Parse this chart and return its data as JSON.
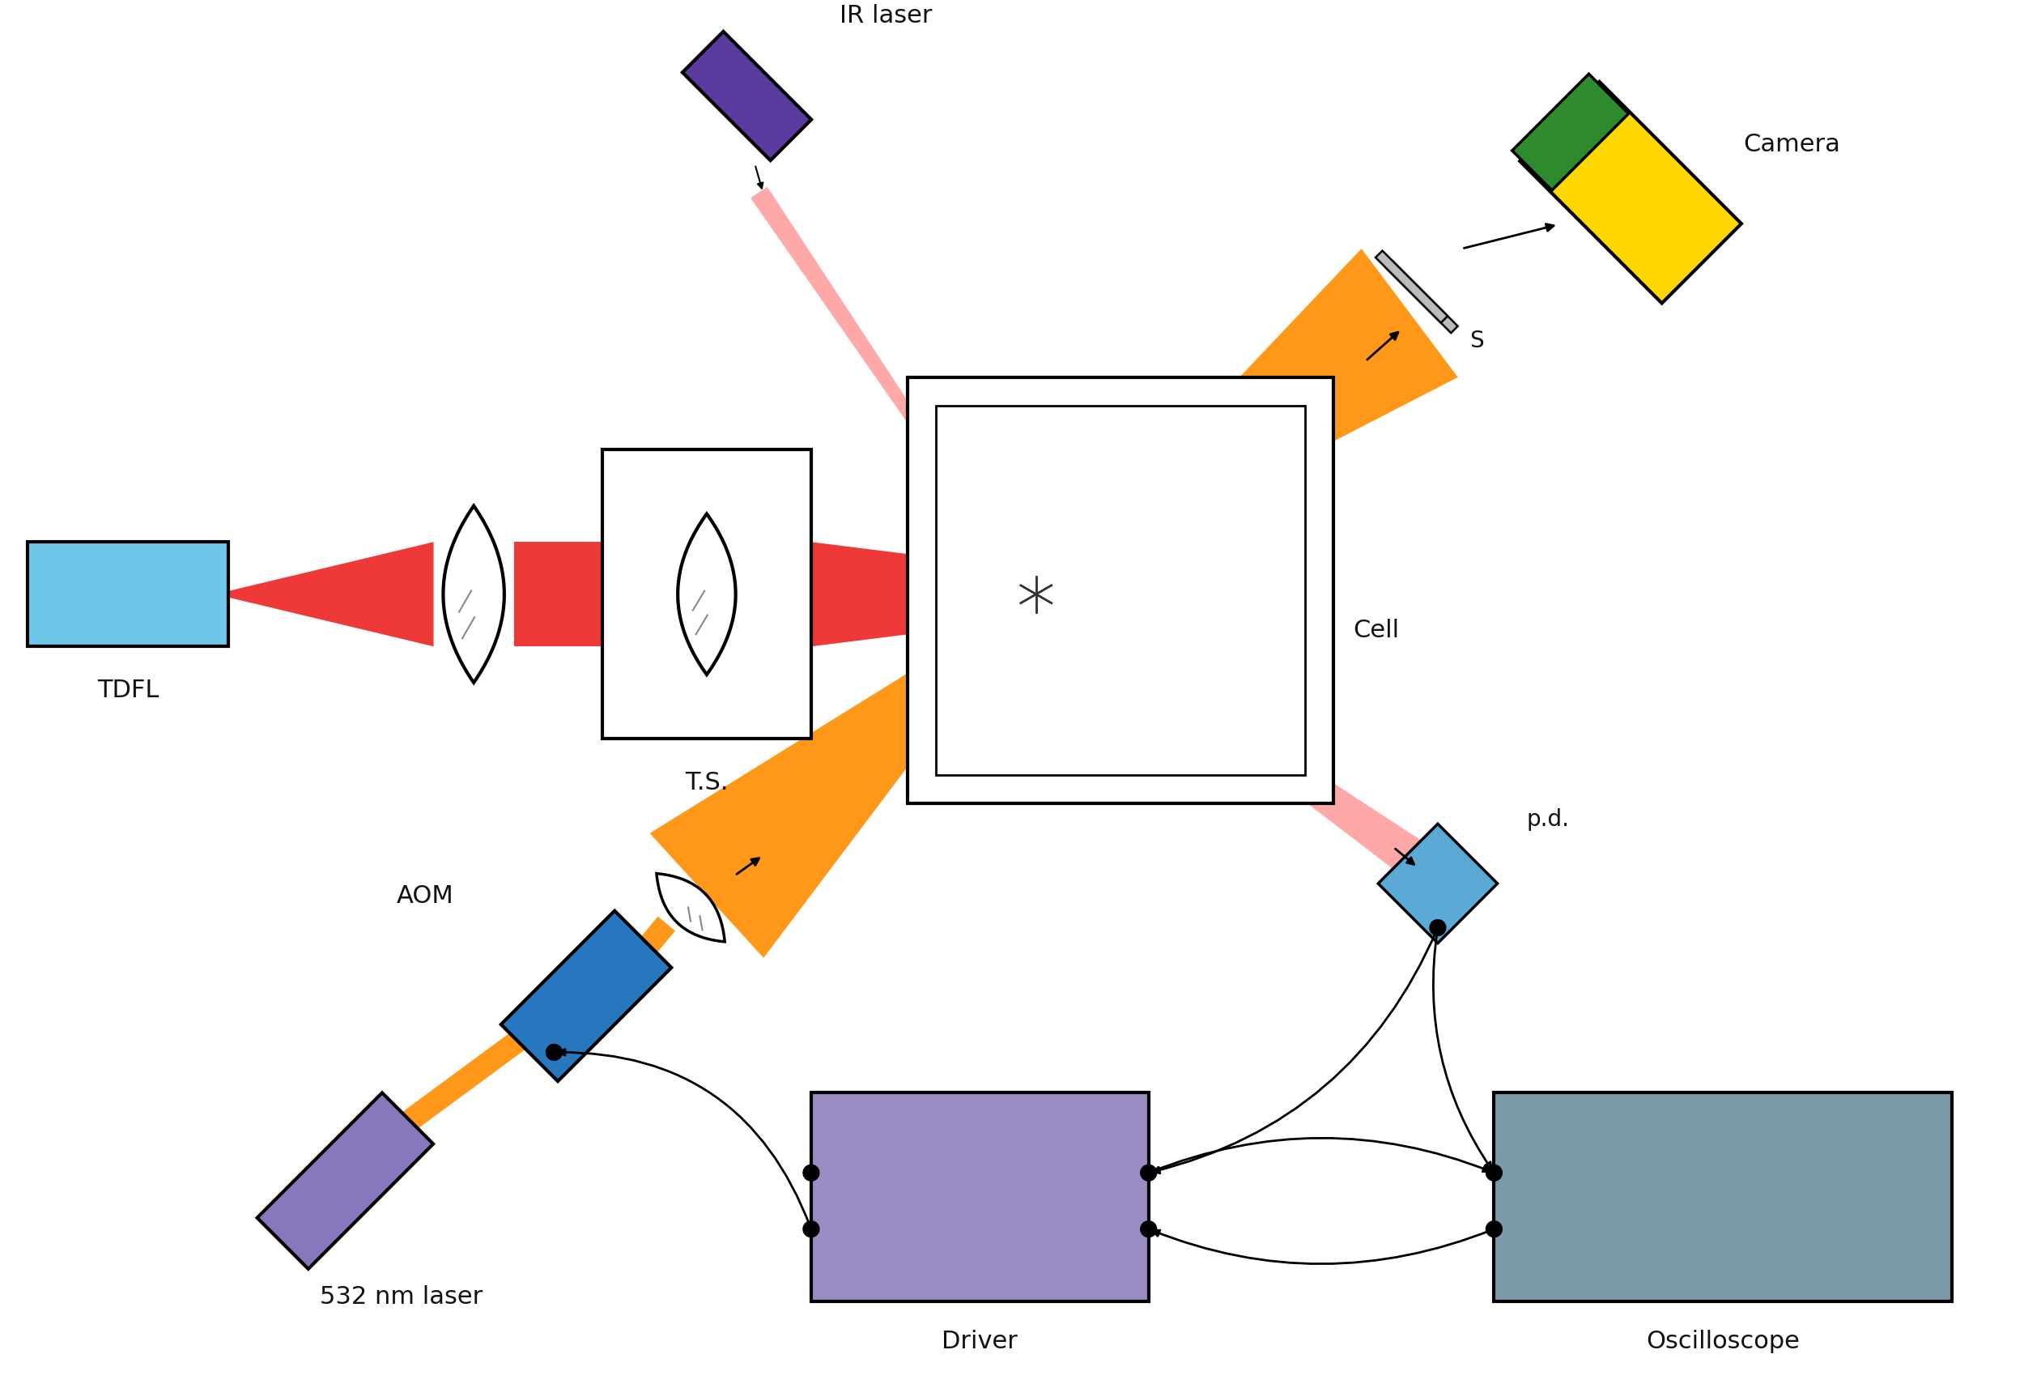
{
  "bg": "#ffffff",
  "fw": 25.0,
  "fh": 17.09,
  "colors": {
    "red": "#EE2222",
    "pink": "#FF9999",
    "orange": "#FF8C00",
    "ir_purple": "#5B3A9E",
    "laser532_purple": "#8878BB",
    "cam_yellow": "#FFD700",
    "cam_green": "#2D8B2D",
    "blue_aom": "#2878C0",
    "blue_pd": "#5AAAD5",
    "lavender": "#9B8DC4",
    "slate": "#7C9AAA",
    "cyan_tdfl": "#6EC6EA",
    "mirror_gray": "#BBBBBB",
    "black": "#111111",
    "white": "#ffffff"
  },
  "labels": {
    "tdfl": "TDFL",
    "ts": "T.S.",
    "ir_laser": "IR laser",
    "camera": "Camera",
    "s": "S",
    "cell": "Cell",
    "aom": "AOM",
    "laser532": "532 nm laser",
    "pd": "p.d.",
    "driver": "Driver",
    "osc": "Oscilloscope"
  },
  "fontsize": 22
}
